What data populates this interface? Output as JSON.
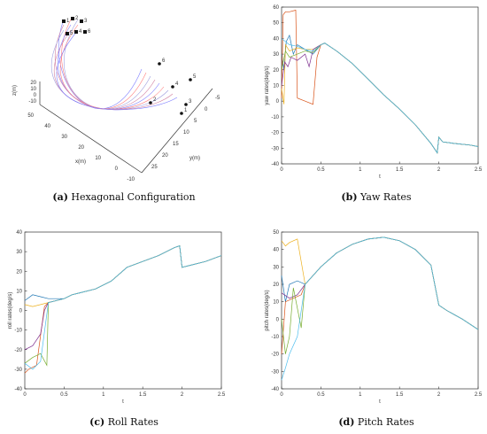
{
  "captions": {
    "a": {
      "tag": "(a)",
      "text": " Hexagonal Configuration"
    },
    "b": {
      "tag": "(b)",
      "text": " Yaw Rates"
    },
    "c": {
      "tag": "(c)",
      "text": " Roll Rates"
    },
    "d": {
      "tag": "(d)",
      "text": " Pitch Rates"
    }
  },
  "colors": {
    "series": [
      "#1f77b4",
      "#d95319",
      "#edb120",
      "#7e2f8e",
      "#77ac30",
      "#4dbeee"
    ],
    "panel3d": [
      "#7f7fff",
      "#ff7f7f",
      "#9f9fdf",
      "#d07fa0"
    ]
  },
  "hexagonal": {
    "x_label": "x(m)",
    "y_label": "y(m)",
    "z_label": "z(m)",
    "x_ticks": [
      "50",
      "40",
      "30",
      "20",
      "10",
      "0",
      "-10"
    ],
    "y_ticks": [
      "-5",
      "0",
      "5",
      "10",
      "15",
      "20",
      "25"
    ],
    "z_ticks": [
      "20",
      "10",
      "0",
      "-10"
    ],
    "start_markers": [
      "1",
      "2",
      "3",
      "4",
      "5",
      "6"
    ],
    "end_markers": [
      "6",
      "5",
      "4",
      "3",
      "2",
      "1"
    ]
  },
  "chart_data": [
    {
      "id": "yaw",
      "type": "line",
      "title": "",
      "xlabel": "t",
      "ylabel": "yaw rates(deg/s)",
      "xlim": [
        0,
        2.5
      ],
      "ylim": [
        -40,
        60
      ],
      "x_ticks": [
        0,
        0.5,
        1,
        1.5,
        2,
        2.5
      ],
      "y_ticks": [
        -40,
        -30,
        -20,
        -10,
        0,
        10,
        20,
        30,
        40,
        50,
        60
      ],
      "common": [
        [
          0.5,
          36
        ],
        [
          0.55,
          37
        ],
        [
          0.7,
          32
        ],
        [
          0.9,
          24
        ],
        [
          1.1,
          14
        ],
        [
          1.3,
          4
        ],
        [
          1.5,
          -5
        ],
        [
          1.7,
          -15
        ],
        [
          1.9,
          -27
        ],
        [
          1.98,
          -33
        ],
        [
          2.0,
          -23
        ],
        [
          2.05,
          -26
        ],
        [
          2.2,
          -27
        ],
        [
          2.4,
          -28
        ],
        [
          2.5,
          -29
        ]
      ],
      "series": [
        {
          "values": [
            [
              0,
              30
            ],
            [
              0.03,
              20
            ],
            [
              0.06,
              38
            ],
            [
              0.1,
              42
            ],
            [
              0.15,
              30
            ],
            [
              0.2,
              36
            ],
            [
              0.3,
              33
            ],
            [
              0.4,
              30
            ],
            [
              0.5,
              36
            ]
          ]
        },
        {
          "values": [
            [
              0,
              2
            ],
            [
              0.02,
              55
            ],
            [
              0.05,
              57
            ],
            [
              0.1,
              57
            ],
            [
              0.18,
              58
            ],
            [
              0.2,
              2
            ],
            [
              0.3,
              0
            ],
            [
              0.4,
              -2
            ],
            [
              0.45,
              28
            ],
            [
              0.5,
              36
            ]
          ]
        },
        {
          "values": [
            [
              0,
              8
            ],
            [
              0.03,
              -2
            ],
            [
              0.05,
              36
            ],
            [
              0.1,
              32
            ],
            [
              0.2,
              34
            ],
            [
              0.3,
              33
            ],
            [
              0.4,
              33
            ],
            [
              0.5,
              36
            ]
          ]
        },
        {
          "values": [
            [
              0,
              10
            ],
            [
              0.04,
              25
            ],
            [
              0.08,
              22
            ],
            [
              0.12,
              28
            ],
            [
              0.2,
              26
            ],
            [
              0.3,
              30
            ],
            [
              0.35,
              22
            ],
            [
              0.4,
              33
            ],
            [
              0.5,
              36
            ]
          ]
        },
        {
          "values": [
            [
              0,
              20
            ],
            [
              0.05,
              32
            ],
            [
              0.1,
              28
            ],
            [
              0.2,
              30
            ],
            [
              0.3,
              32
            ],
            [
              0.4,
              31
            ],
            [
              0.5,
              36
            ]
          ]
        },
        {
          "values": [
            [
              0,
              40
            ],
            [
              0.05,
              38
            ],
            [
              0.1,
              36
            ],
            [
              0.2,
              35
            ],
            [
              0.3,
              33
            ],
            [
              0.4,
              32
            ],
            [
              0.5,
              36
            ]
          ]
        }
      ]
    },
    {
      "id": "roll",
      "type": "line",
      "title": "",
      "xlabel": "t",
      "ylabel": "roll rates(deg/s)",
      "xlim": [
        0,
        2.5
      ],
      "ylim": [
        -40,
        40
      ],
      "x_ticks": [
        0,
        0.5,
        1,
        1.5,
        2,
        2.5
      ],
      "y_ticks": [
        -40,
        -30,
        -20,
        -10,
        0,
        10,
        20,
        30,
        40
      ],
      "common": [
        [
          0.3,
          4
        ],
        [
          0.5,
          6
        ],
        [
          0.6,
          8
        ],
        [
          0.7,
          9
        ],
        [
          0.9,
          11
        ],
        [
          1.1,
          15
        ],
        [
          1.3,
          22
        ],
        [
          1.5,
          25
        ],
        [
          1.7,
          28
        ],
        [
          1.9,
          32
        ],
        [
          1.97,
          33
        ],
        [
          2.0,
          22
        ],
        [
          2.1,
          23
        ],
        [
          2.3,
          25
        ],
        [
          2.5,
          28
        ]
      ],
      "series": [
        {
          "values": [
            [
              0,
              5
            ],
            [
              0.1,
              8
            ],
            [
              0.2,
              7
            ],
            [
              0.3,
              6
            ]
          ]
        },
        {
          "values": [
            [
              0,
              -32
            ],
            [
              0.05,
              -30
            ],
            [
              0.15,
              -28
            ],
            [
              0.25,
              2
            ],
            [
              0.3,
              4
            ]
          ]
        },
        {
          "values": [
            [
              0,
              3
            ],
            [
              0.1,
              2
            ],
            [
              0.2,
              3
            ],
            [
              0.3,
              4
            ]
          ]
        },
        {
          "values": [
            [
              0,
              -20
            ],
            [
              0.1,
              -18
            ],
            [
              0.2,
              -12
            ],
            [
              0.25,
              0
            ],
            [
              0.3,
              4
            ]
          ]
        },
        {
          "values": [
            [
              0,
              -27
            ],
            [
              0.1,
              -24
            ],
            [
              0.2,
              -22
            ],
            [
              0.28,
              -28
            ],
            [
              0.3,
              4
            ]
          ]
        },
        {
          "values": [
            [
              0,
              -27
            ],
            [
              0.1,
              -30
            ],
            [
              0.2,
              -26
            ],
            [
              0.3,
              4
            ]
          ]
        }
      ]
    },
    {
      "id": "pitch",
      "type": "line",
      "title": "",
      "xlabel": "t",
      "ylabel": "pitch rates(deg/s)",
      "xlim": [
        0,
        2.5
      ],
      "ylim": [
        -40,
        50
      ],
      "x_ticks": [
        0,
        0.5,
        1,
        1.5,
        2,
        2.5
      ],
      "y_ticks": [
        -40,
        -30,
        -20,
        -10,
        0,
        10,
        20,
        30,
        40,
        50
      ],
      "common": [
        [
          0.3,
          20
        ],
        [
          0.5,
          30
        ],
        [
          0.7,
          38
        ],
        [
          0.9,
          43
        ],
        [
          1.1,
          46
        ],
        [
          1.3,
          47
        ],
        [
          1.5,
          45
        ],
        [
          1.7,
          40
        ],
        [
          1.9,
          31
        ],
        [
          2.0,
          8
        ],
        [
          2.1,
          5
        ],
        [
          2.3,
          0
        ],
        [
          2.5,
          -6
        ]
      ],
      "series": [
        {
          "values": [
            [
              0,
              25
            ],
            [
              0.05,
              10
            ],
            [
              0.1,
              20
            ],
            [
              0.2,
              22
            ],
            [
              0.3,
              20
            ]
          ]
        },
        {
          "values": [
            [
              0,
              -20
            ],
            [
              0.05,
              10
            ],
            [
              0.15,
              12
            ],
            [
              0.25,
              14
            ],
            [
              0.3,
              20
            ]
          ]
        },
        {
          "values": [
            [
              0,
              45
            ],
            [
              0.05,
              42
            ],
            [
              0.1,
              44
            ],
            [
              0.2,
              46
            ],
            [
              0.3,
              20
            ]
          ]
        },
        {
          "values": [
            [
              0,
              15
            ],
            [
              0.1,
              12
            ],
            [
              0.2,
              14
            ],
            [
              0.3,
              20
            ]
          ]
        },
        {
          "values": [
            [
              0,
              0
            ],
            [
              0.05,
              -20
            ],
            [
              0.1,
              -10
            ],
            [
              0.15,
              18
            ],
            [
              0.25,
              -5
            ],
            [
              0.3,
              20
            ]
          ]
        },
        {
          "values": [
            [
              0,
              -35
            ],
            [
              0.05,
              -28
            ],
            [
              0.1,
              -20
            ],
            [
              0.2,
              -10
            ],
            [
              0.3,
              20
            ]
          ]
        }
      ]
    }
  ]
}
